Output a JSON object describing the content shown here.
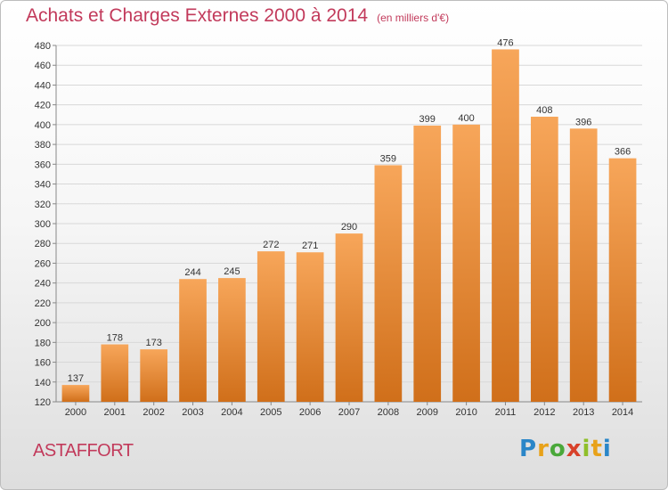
{
  "header": {
    "title": "Achats et Charges Externes 2000 à 2014",
    "subtitle": "(en milliers d'€)"
  },
  "footer": {
    "town": "ASTAFFORT",
    "logo_text": "Proxiti"
  },
  "colors": {
    "bar_top": "#f7a65a",
    "bar_bottom": "#d06f1a",
    "title": "#c23a5b",
    "grid": "#d8d8d8"
  },
  "chart_data": {
    "type": "bar",
    "title": "Achats et Charges Externes 2000 à 2014",
    "subtitle": "(en milliers d'€)",
    "xlabel": "",
    "ylabel": "",
    "categories": [
      "2000",
      "2001",
      "2002",
      "2003",
      "2004",
      "2005",
      "2006",
      "2007",
      "2008",
      "2009",
      "2010",
      "2011",
      "2012",
      "2013",
      "2014"
    ],
    "values": [
      137,
      178,
      173,
      244,
      245,
      272,
      271,
      290,
      359,
      399,
      400,
      476,
      408,
      396,
      366
    ],
    "ylim": [
      120,
      480
    ],
    "yticks": [
      120,
      140,
      160,
      180,
      200,
      220,
      240,
      260,
      280,
      300,
      320,
      340,
      360,
      380,
      400,
      420,
      440,
      460,
      480
    ],
    "grid": true,
    "legend": "none"
  }
}
